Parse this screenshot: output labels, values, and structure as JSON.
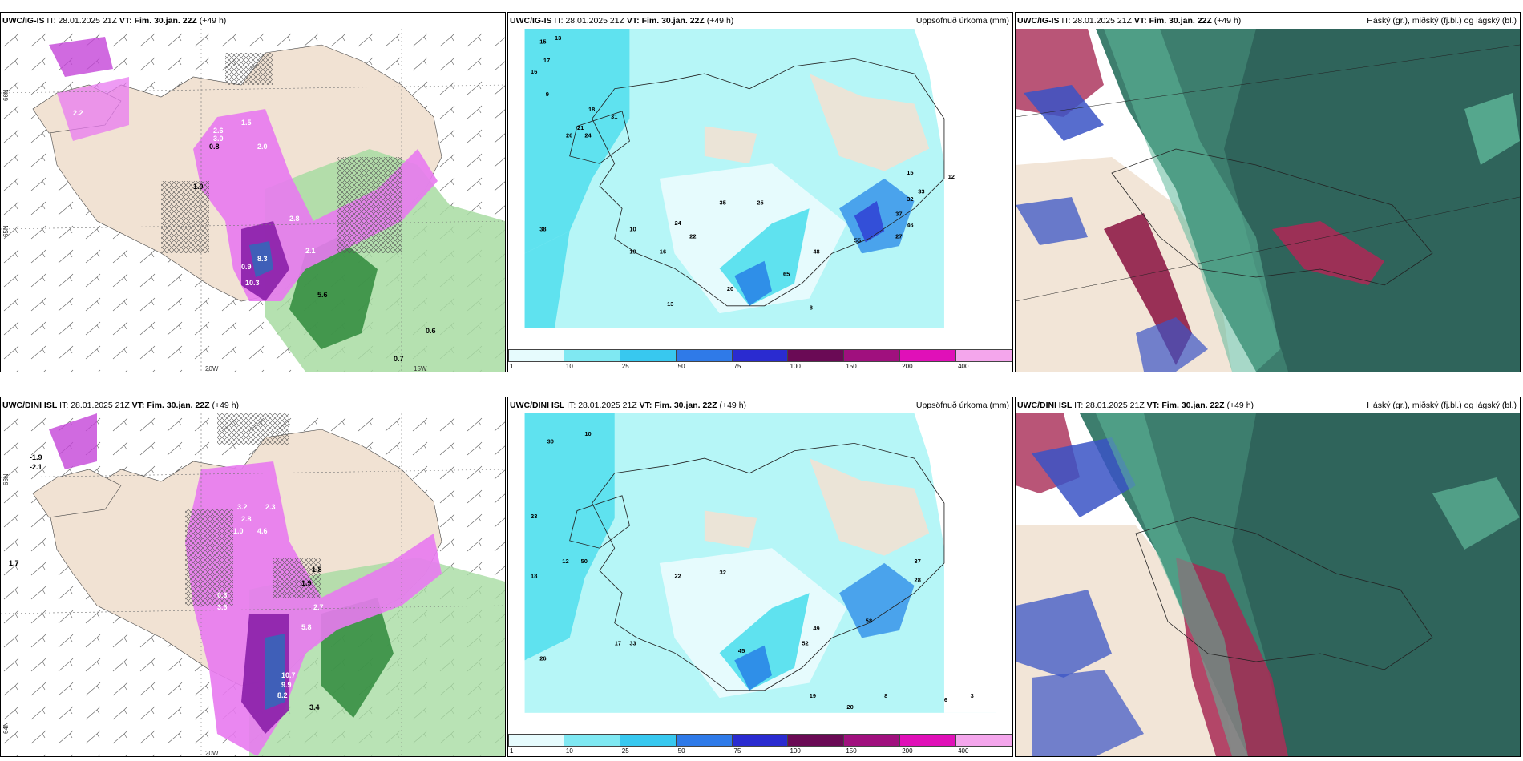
{
  "rows": [
    {
      "left": {
        "model": "UWC/IG-IS",
        "it_label": "IT:",
        "it": "28.01.2025 21Z",
        "vt_label": "VT:",
        "vt": "Fim. 30.jan. 22Z",
        "lead": "(+49 h)"
      },
      "mid": {
        "model": "UWC/IG-IS",
        "it_label": "IT:",
        "it": "28.01.2025 21Z",
        "vt_label": "VT:",
        "vt": "Fim. 30.jan. 22Z",
        "lead": "(+49 h)",
        "right_title": "Uppsöfnuð úrkoma (mm)"
      },
      "right": {
        "model": "UWC/IG-IS",
        "it_label": "IT:",
        "it": "28.01.2025 21Z",
        "vt_label": "VT:",
        "vt": "Fim. 30.jan. 22Z",
        "lead": "(+49 h)",
        "right_title": "Háský (gr.), miðský (fj.bl.) og lágský (bl.)"
      }
    },
    {
      "left": {
        "model": "UWC/DINI ISL",
        "it_label": "IT:",
        "it": "28.01.2025 21Z",
        "vt_label": "VT:",
        "vt": "Fim. 30.jan. 22Z",
        "lead": "(+49 h)"
      },
      "mid": {
        "model": "UWC/DINI ISL",
        "it_label": "IT:",
        "it": "28.01.2025 21Z",
        "vt_label": "VT:",
        "vt": "Fim. 30.jan. 22Z",
        "lead": "(+49 h)",
        "right_title": "Uppsöfnuð úrkoma (mm)"
      },
      "right": {
        "model": "UWC/DINI ISL",
        "it_label": "IT:",
        "it": "28.01.2025 21Z",
        "vt_label": "VT:",
        "vt": "Fim. 30.jan. 22Z",
        "lead": "(+49 h)",
        "right_title": "Háský (gr.), miðský (fj.bl.) og lágský (bl.)"
      }
    }
  ],
  "axes": {
    "lon_20w": "20W",
    "lon_15w": "15W",
    "lat_66n": "66N",
    "lat_65n": "65N",
    "lat_64n": "64N"
  },
  "colorbar": {
    "ticks": [
      "1",
      "10",
      "25",
      "50",
      "75",
      "100",
      "150",
      "200",
      "400"
    ],
    "colors": [
      "#e6fbfd",
      "#7fe8f2",
      "#38c8ef",
      "#2f7ae8",
      "#2a2bd0",
      "#6a0a55",
      "#a0107e",
      "#e010b8",
      "#f4a6ec"
    ]
  },
  "colors": {
    "land": "#f1e2d3",
    "precip_light": "#b6f6f7",
    "precip_mid": "#5fe2ef",
    "precip_heavy": "#2f8fe8",
    "snow_pink": "#e87af0",
    "snow_purple": "#9a2ab8",
    "rain_green": "#9fd89a",
    "rain_dark": "#1c6b2a",
    "cloud_high": "#3d7e6e",
    "cloud_mid": "#a82a55",
    "cloud_low": "#3a54c6"
  },
  "map_labels": {
    "left_top": [
      "2.2",
      "0.8",
      "1.5",
      "2.6",
      "3.0",
      "1.0",
      "2.0",
      "2.8",
      "8.3",
      "10.3",
      "5.6",
      "2.1",
      "0.9",
      "0.6",
      "0.7"
    ],
    "left_bottom": [
      "-1.9",
      "-2.1",
      "1.7",
      "3.2",
      "2.3",
      "2.8",
      "4.6",
      "1.0",
      "0.3",
      "3.6",
      "10.7",
      "9.9",
      "8.2",
      "2.7",
      "-1.8",
      "1.9",
      "5.8",
      "3.4"
    ],
    "mid_top": [
      "15",
      "13",
      "17",
      "16",
      "9",
      "18",
      "31",
      "21",
      "26",
      "24",
      "38",
      "10",
      "19",
      "16",
      "35",
      "25",
      "22",
      "24",
      "20",
      "48",
      "55",
      "65",
      "27",
      "37",
      "32",
      "33",
      "46",
      "15",
      "12",
      "13",
      "8"
    ],
    "mid_bottom": [
      "30",
      "12",
      "18",
      "10",
      "23",
      "26",
      "50",
      "33",
      "22",
      "17",
      "32",
      "45",
      "28",
      "37",
      "49",
      "52",
      "58",
      "19",
      "20",
      "8",
      "6",
      "3"
    ]
  }
}
